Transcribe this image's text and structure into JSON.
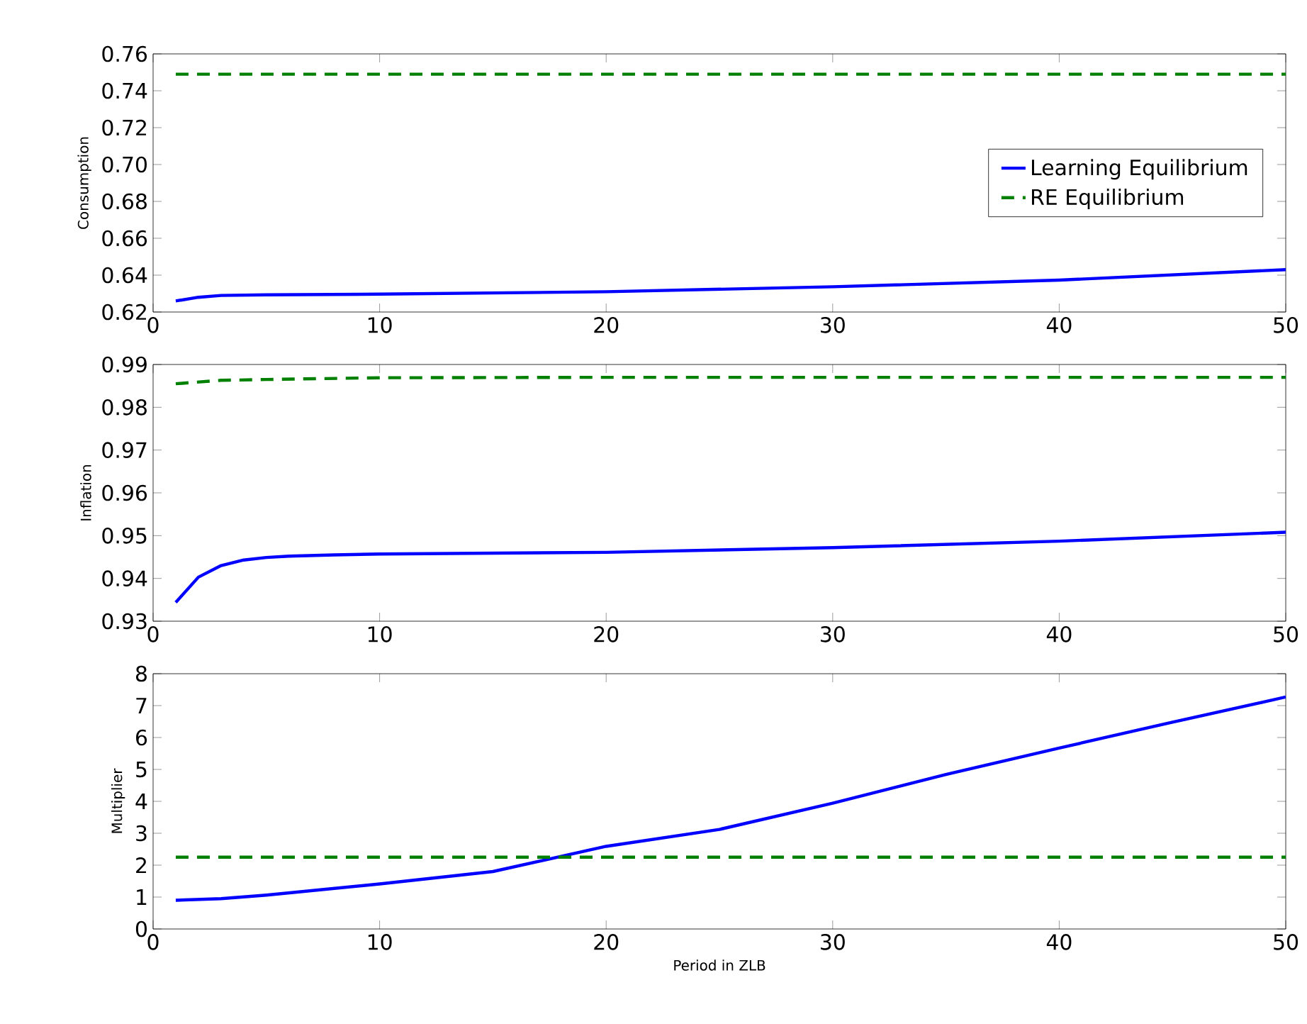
{
  "chart_data": [
    {
      "type": "line",
      "ylabel": "Consumption",
      "xlim": [
        0,
        50
      ],
      "ylim": [
        0.62,
        0.76
      ],
      "xticks": [
        0,
        10,
        20,
        30,
        40,
        50
      ],
      "yticks": [
        0.62,
        0.64,
        0.66,
        0.68,
        {
          "value": 0.7,
          "label": "0.70"
        },
        0.72,
        0.74,
        0.76
      ],
      "legend": "right",
      "grid": false,
      "series": [
        {
          "name": "Learning Equilibrium",
          "color": "#0000ff",
          "line_style": "solid",
          "x": [
            1,
            2,
            3,
            5,
            10,
            20,
            30,
            40,
            50
          ],
          "values": [
            0.626,
            0.628,
            0.629,
            0.6293,
            0.6297,
            0.631,
            0.6337,
            0.6373,
            0.643
          ]
        },
        {
          "name": "RE Equilibrium",
          "color": "#008000",
          "line_style": "dashed",
          "x": [
            1,
            50
          ],
          "values": [
            0.749,
            0.749
          ]
        }
      ]
    },
    {
      "type": "line",
      "ylabel": "Inflation",
      "xlim": [
        0,
        50
      ],
      "ylim": [
        0.93,
        0.99
      ],
      "xticks": [
        0,
        10,
        20,
        30,
        40,
        50
      ],
      "yticks": [
        0.93,
        0.94,
        0.95,
        0.96,
        0.97,
        0.98,
        0.99
      ],
      "grid": false,
      "series": [
        {
          "color": "#0000ff",
          "line_style": "solid",
          "x": [
            1,
            2,
            3,
            4,
            5,
            6,
            8,
            10,
            20,
            30,
            40,
            50
          ],
          "values": [
            0.9344,
            0.9403,
            0.943,
            0.9443,
            0.9449,
            0.9452,
            0.9455,
            0.9457,
            0.9461,
            0.9472,
            0.9487,
            0.9508
          ]
        },
        {
          "color": "#008000",
          "line_style": "dashed",
          "x": [
            1,
            3,
            5,
            10,
            20,
            50
          ],
          "values": [
            0.9855,
            0.9863,
            0.9865,
            0.9869,
            0.987,
            0.987
          ]
        }
      ]
    },
    {
      "type": "line",
      "ylabel": "Multiplier",
      "xlabel": "Period in ZLB",
      "xlim": [
        0,
        50
      ],
      "ylim": [
        0,
        8
      ],
      "xticks": [
        0,
        10,
        20,
        30,
        40,
        50
      ],
      "yticks": [
        0,
        1,
        2,
        3,
        4,
        5,
        6,
        7,
        8
      ],
      "grid": false,
      "series": [
        {
          "color": "#0000ff",
          "line_style": "solid",
          "x": [
            1,
            3,
            5,
            10,
            15,
            20,
            25,
            30,
            35,
            40,
            45,
            50
          ],
          "values": [
            0.9,
            0.95,
            1.06,
            1.41,
            1.8,
            2.59,
            3.12,
            3.94,
            4.84,
            5.67,
            6.48,
            7.27
          ]
        },
        {
          "color": "#008000",
          "line_style": "dashed",
          "x": [
            1,
            50
          ],
          "values": [
            2.25,
            2.25
          ]
        }
      ]
    }
  ]
}
